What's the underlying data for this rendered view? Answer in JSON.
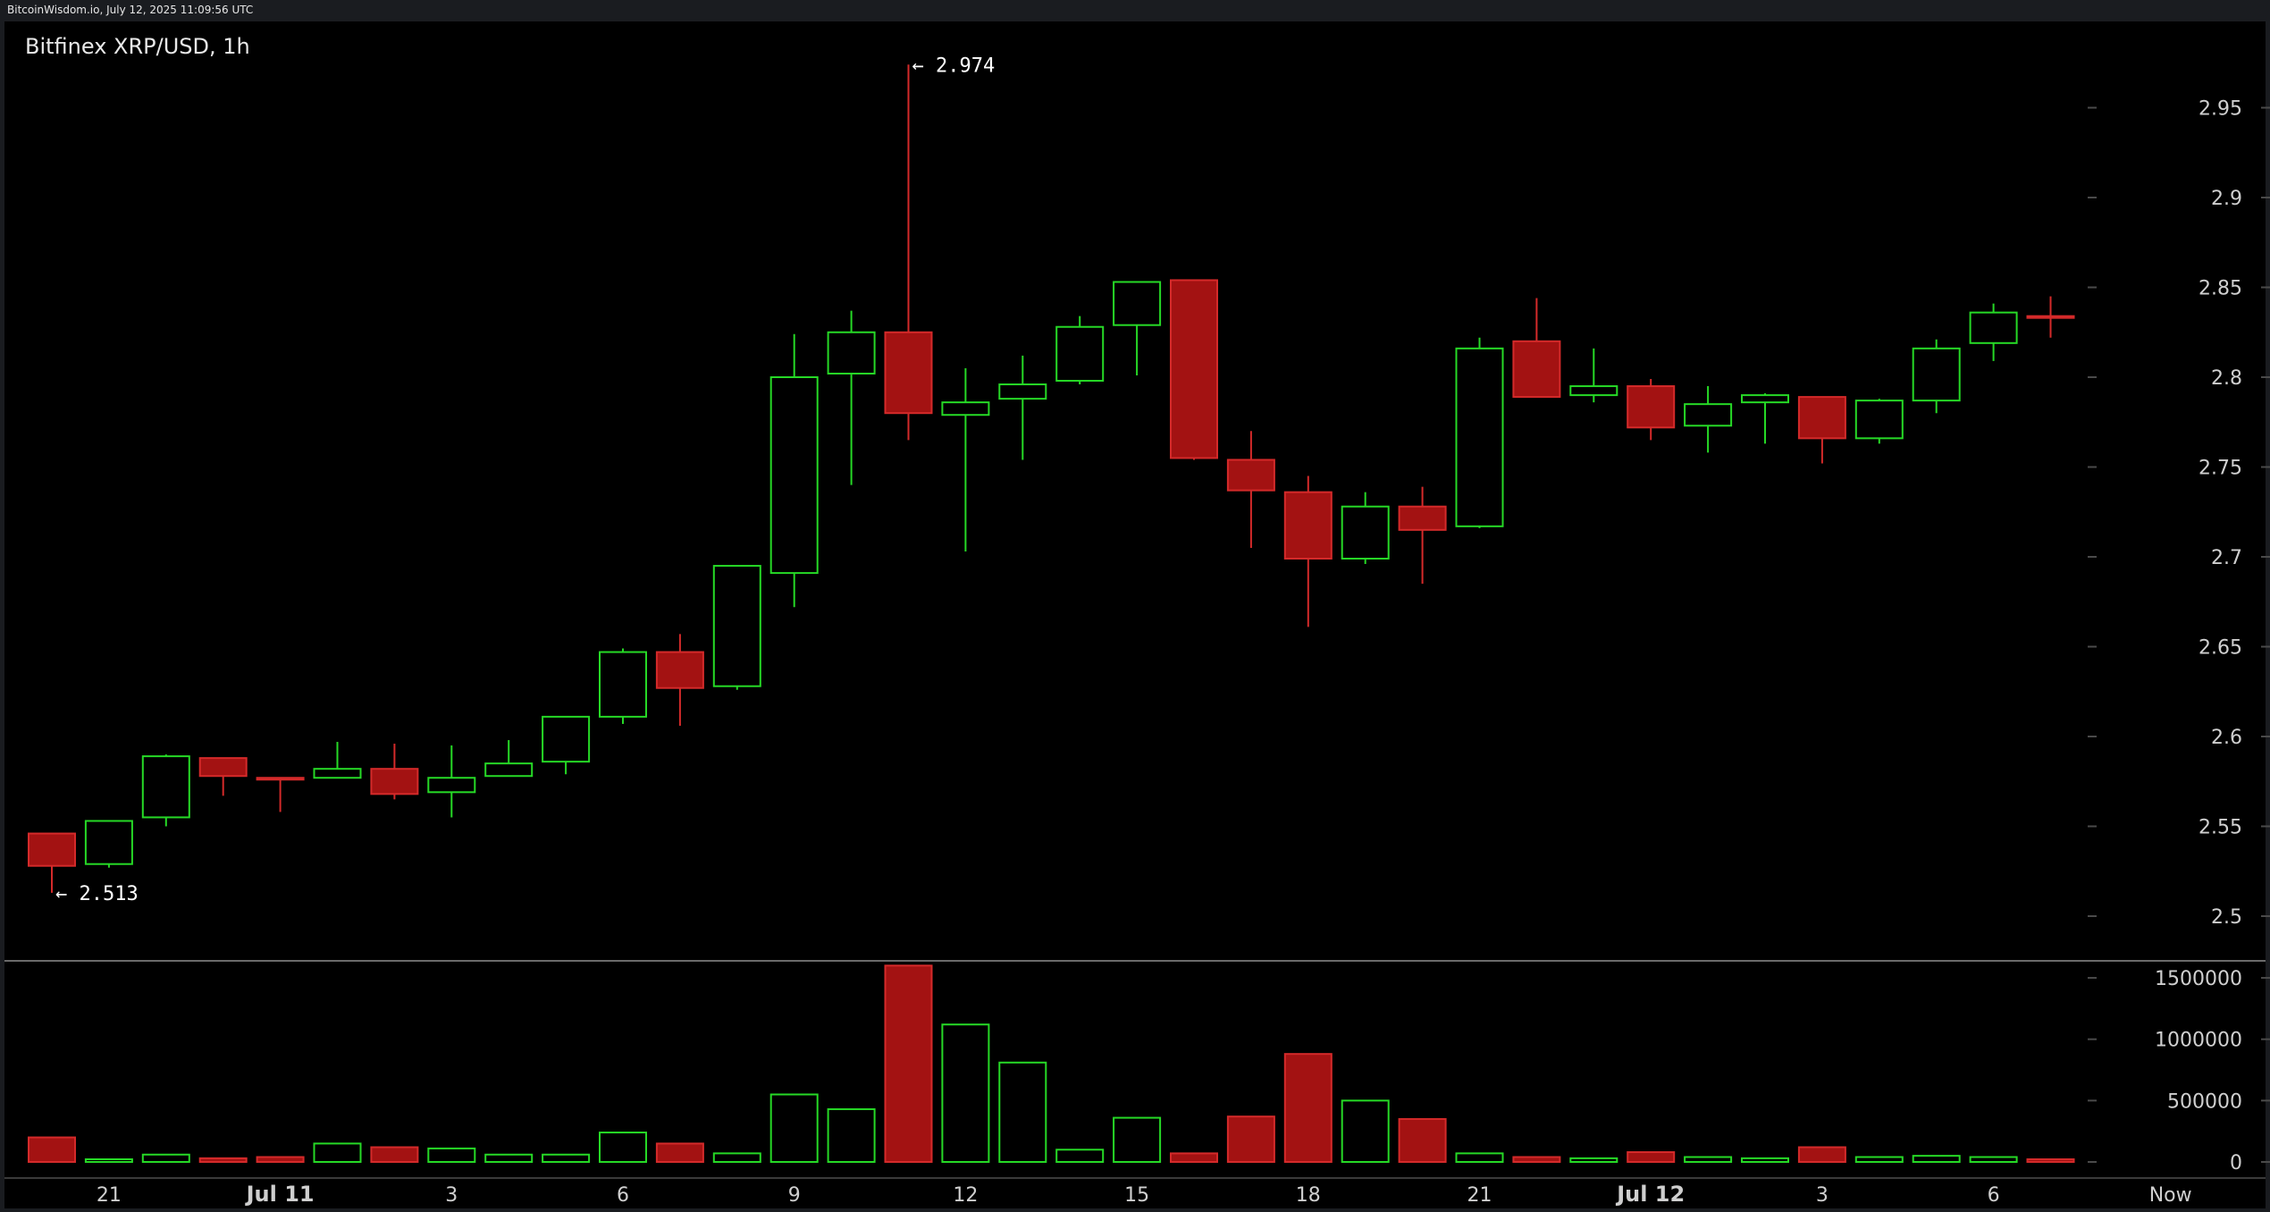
{
  "header": {
    "source_line": "BitcoinWisdom.io, July 12, 2025 11:09:56 UTC"
  },
  "colors": {
    "background": "#000000",
    "frame": "#1a1c20",
    "up": "#26d926",
    "down": "#a31212",
    "down_stroke": "#d42a2a",
    "grid_tick": "#4a4a4a",
    "separator": "#6a6a6a"
  },
  "chart_data": {
    "type": "candlestick",
    "title": "Bitfinex XRP/USD, 1h",
    "price_axis": {
      "ylim": [
        2.47,
        2.99
      ],
      "ticks": [
        2.5,
        2.55,
        2.6,
        2.65,
        2.7,
        2.75,
        2.8,
        2.85,
        2.9,
        2.95
      ],
      "tick_labels": [
        "2.5",
        "2.55",
        "2.6",
        "2.65",
        "2.7",
        "2.75",
        "2.8",
        "2.85",
        "2.9",
        "2.95"
      ]
    },
    "volume_axis": {
      "ylim": [
        0,
        1650000
      ],
      "ticks": [
        0,
        500000,
        1000000,
        1500000
      ],
      "tick_labels": [
        "0",
        "500000",
        "1000000",
        "1500000"
      ]
    },
    "x_labels": [
      {
        "text": "21",
        "candle": 1,
        "bold": false
      },
      {
        "text": "Jul 11",
        "candle": 4,
        "bold": true
      },
      {
        "text": "3",
        "candle": 7,
        "bold": false
      },
      {
        "text": "6",
        "candle": 10,
        "bold": false
      },
      {
        "text": "9",
        "candle": 13,
        "bold": false
      },
      {
        "text": "12",
        "candle": 16,
        "bold": false
      },
      {
        "text": "15",
        "candle": 19,
        "bold": false
      },
      {
        "text": "18",
        "candle": 22,
        "bold": false
      },
      {
        "text": "21",
        "candle": 25,
        "bold": false
      },
      {
        "text": "Jul 12",
        "candle": 28,
        "bold": true
      },
      {
        "text": "3",
        "candle": 31,
        "bold": false
      },
      {
        "text": "6",
        "candle": 34,
        "bold": false
      },
      {
        "text": "Now",
        "candle": 37.1,
        "bold": false
      }
    ],
    "annotations": [
      {
        "text": "← 2.974",
        "candle": 15,
        "value": 2.974
      },
      {
        "text": "← 2.513",
        "candle": 0,
        "value": 2.513
      }
    ],
    "candles": [
      {
        "o": 2.546,
        "h": 2.546,
        "l": 2.513,
        "c": 2.528,
        "v": 200000
      },
      {
        "o": 2.529,
        "h": 2.553,
        "l": 2.527,
        "c": 2.553,
        "v": 20000
      },
      {
        "o": 2.555,
        "h": 2.59,
        "l": 2.55,
        "c": 2.589,
        "v": 60000
      },
      {
        "o": 2.588,
        "h": 2.588,
        "l": 2.567,
        "c": 2.578,
        "v": 30000
      },
      {
        "o": 2.577,
        "h": 2.577,
        "l": 2.558,
        "c": 2.576,
        "v": 40000
      },
      {
        "o": 2.577,
        "h": 2.597,
        "l": 2.577,
        "c": 2.582,
        "v": 150000
      },
      {
        "o": 2.582,
        "h": 2.596,
        "l": 2.565,
        "c": 2.568,
        "v": 120000
      },
      {
        "o": 2.569,
        "h": 2.595,
        "l": 2.555,
        "c": 2.577,
        "v": 110000
      },
      {
        "o": 2.578,
        "h": 2.598,
        "l": 2.578,
        "c": 2.585,
        "v": 60000
      },
      {
        "o": 2.586,
        "h": 2.611,
        "l": 2.579,
        "c": 2.611,
        "v": 60000
      },
      {
        "o": 2.611,
        "h": 2.649,
        "l": 2.607,
        "c": 2.647,
        "v": 240000
      },
      {
        "o": 2.647,
        "h": 2.657,
        "l": 2.606,
        "c": 2.627,
        "v": 150000
      },
      {
        "o": 2.628,
        "h": 2.695,
        "l": 2.626,
        "c": 2.695,
        "v": 70000
      },
      {
        "o": 2.691,
        "h": 2.824,
        "l": 2.672,
        "c": 2.8,
        "v": 550000
      },
      {
        "o": 2.802,
        "h": 2.837,
        "l": 2.74,
        "c": 2.825,
        "v": 430000
      },
      {
        "o": 2.825,
        "h": 2.974,
        "l": 2.765,
        "c": 2.78,
        "v": 1600000
      },
      {
        "o": 2.779,
        "h": 2.805,
        "l": 2.703,
        "c": 2.786,
        "v": 1120000
      },
      {
        "o": 2.788,
        "h": 2.812,
        "l": 2.754,
        "c": 2.796,
        "v": 810000
      },
      {
        "o": 2.798,
        "h": 2.834,
        "l": 2.796,
        "c": 2.828,
        "v": 100000
      },
      {
        "o": 2.829,
        "h": 2.853,
        "l": 2.801,
        "c": 2.853,
        "v": 360000
      },
      {
        "o": 2.854,
        "h": 2.854,
        "l": 2.754,
        "c": 2.755,
        "v": 70000
      },
      {
        "o": 2.754,
        "h": 2.77,
        "l": 2.705,
        "c": 2.737,
        "v": 370000
      },
      {
        "o": 2.736,
        "h": 2.745,
        "l": 2.661,
        "c": 2.699,
        "v": 880000
      },
      {
        "o": 2.699,
        "h": 2.736,
        "l": 2.696,
        "c": 2.728,
        "v": 500000
      },
      {
        "o": 2.728,
        "h": 2.739,
        "l": 2.685,
        "c": 2.715,
        "v": 350000
      },
      {
        "o": 2.717,
        "h": 2.822,
        "l": 2.716,
        "c": 2.816,
        "v": 70000
      },
      {
        "o": 2.82,
        "h": 2.844,
        "l": 2.789,
        "c": 2.789,
        "v": 40000
      },
      {
        "o": 2.79,
        "h": 2.816,
        "l": 2.786,
        "c": 2.795,
        "v": 30000
      },
      {
        "o": 2.795,
        "h": 2.799,
        "l": 2.765,
        "c": 2.772,
        "v": 80000
      },
      {
        "o": 2.773,
        "h": 2.795,
        "l": 2.758,
        "c": 2.785,
        "v": 40000
      },
      {
        "o": 2.786,
        "h": 2.791,
        "l": 2.763,
        "c": 2.79,
        "v": 30000
      },
      {
        "o": 2.789,
        "h": 2.789,
        "l": 2.752,
        "c": 2.766,
        "v": 120000
      },
      {
        "o": 2.766,
        "h": 2.788,
        "l": 2.763,
        "c": 2.787,
        "v": 40000
      },
      {
        "o": 2.787,
        "h": 2.821,
        "l": 2.78,
        "c": 2.816,
        "v": 50000
      },
      {
        "o": 2.819,
        "h": 2.841,
        "l": 2.809,
        "c": 2.836,
        "v": 40000
      },
      {
        "o": 2.834,
        "h": 2.845,
        "l": 2.822,
        "c": 2.833,
        "v": 10000
      }
    ]
  }
}
